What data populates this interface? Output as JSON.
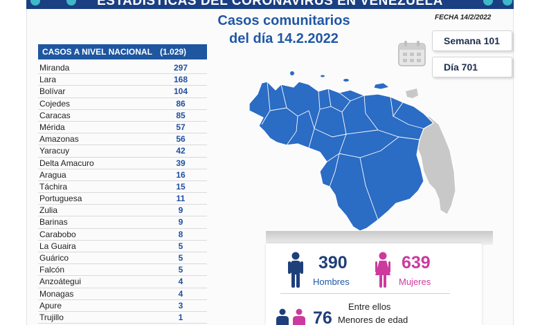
{
  "banner": {
    "title": "ESTADÍSTICAS DEL CORONAVIRUS EN VENEZUELA"
  },
  "header": {
    "title_line1": "Casos comunitarios",
    "title_line2": "del día 14.2.2022",
    "date": "FECHA 14/2/2022",
    "week": "Semana 101",
    "day": "Día 701"
  },
  "table": {
    "heading": "CASOS A NIVEL NACIONAL",
    "total": "(1.029)",
    "rows": [
      {
        "state": "Miranda",
        "cases": "297"
      },
      {
        "state": "Lara",
        "cases": "168"
      },
      {
        "state": "Bolívar",
        "cases": "104"
      },
      {
        "state": "Cojedes",
        "cases": "86"
      },
      {
        "state": "Caracas",
        "cases": "85"
      },
      {
        "state": "Mérida",
        "cases": "57"
      },
      {
        "state": "Amazonas",
        "cases": "56"
      },
      {
        "state": "Yaracuy",
        "cases": "42"
      },
      {
        "state": "Delta Amacuro",
        "cases": "39"
      },
      {
        "state": "Aragua",
        "cases": "16"
      },
      {
        "state": "Táchira",
        "cases": "15"
      },
      {
        "state": "Portuguesa",
        "cases": "11"
      },
      {
        "state": "Zulia",
        "cases": "9"
      },
      {
        "state": "Barinas",
        "cases": "9"
      },
      {
        "state": "Carabobo",
        "cases": "8"
      },
      {
        "state": "La Guaira",
        "cases": "5"
      },
      {
        "state": "Guárico",
        "cases": "5"
      },
      {
        "state": "Falcón",
        "cases": "5"
      },
      {
        "state": "Anzoátegui",
        "cases": "4"
      },
      {
        "state": "Monagas",
        "cases": "4"
      },
      {
        "state": "Apure",
        "cases": "3"
      },
      {
        "state": "Trujillo",
        "cases": "1"
      }
    ]
  },
  "stats": {
    "men_count": "390",
    "men_label": "Hombres",
    "women_count": "639",
    "women_label": "Mujeres",
    "between_label": "Entre ellos",
    "minors_count": "76",
    "minors_label": "Menores de edad"
  },
  "colors": {
    "primary_blue": "#1e56a0",
    "map_blue": "#2b6cc4",
    "women_pink": "#cc3a9e",
    "disputed_grey": "#c8c8c8"
  },
  "icons": [
    "calendar-icon",
    "man-icon",
    "woman-icon",
    "virus-icon"
  ]
}
